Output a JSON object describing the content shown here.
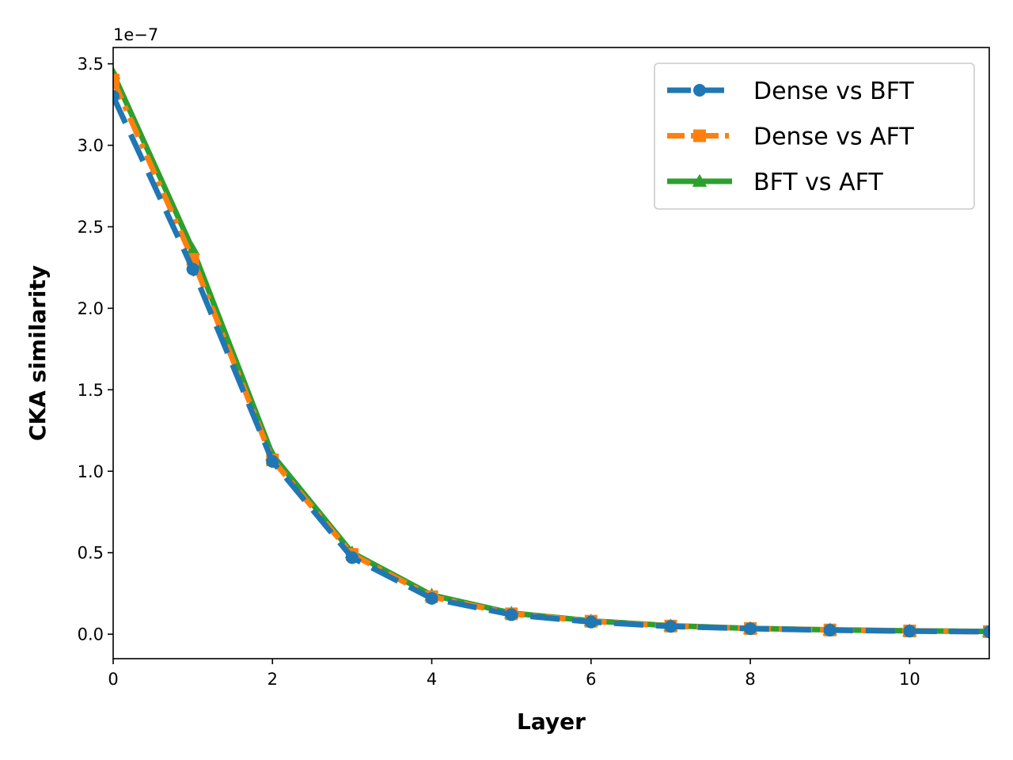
{
  "chart_data": {
    "type": "line",
    "title": "",
    "xlabel": "Layer",
    "ylabel": "CKA similarity",
    "y_offset_label": "1e−7",
    "xlim": [
      0,
      11
    ],
    "ylim": [
      -0.15,
      3.6
    ],
    "x_ticks": [
      0,
      2,
      4,
      6,
      8,
      10
    ],
    "x_tick_labels": [
      "0",
      "2",
      "4",
      "6",
      "8",
      "10"
    ],
    "y_ticks": [
      0.0,
      0.5,
      1.0,
      1.5,
      2.0,
      2.5,
      3.0,
      3.5
    ],
    "y_tick_labels": [
      "0.0",
      "0.5",
      "1.0",
      "1.5",
      "2.0",
      "2.5",
      "3.0",
      "3.5"
    ],
    "grid": false,
    "legend_position": "top-right",
    "x": [
      0,
      1,
      2,
      3,
      4,
      5,
      6,
      7,
      8,
      9,
      10,
      11
    ],
    "series": [
      {
        "name": "Dense vs BFT",
        "color": "#1f77b4",
        "linestyle": "dashed",
        "marker": "circle",
        "values": [
          3.3,
          2.24,
          1.06,
          0.47,
          0.22,
          0.12,
          0.075,
          0.048,
          0.034,
          0.025,
          0.019,
          0.015
        ]
      },
      {
        "name": "Dense vs AFT",
        "color": "#ff7f0e",
        "linestyle": "dashdot",
        "marker": "square",
        "values": [
          3.4,
          2.3,
          1.07,
          0.49,
          0.23,
          0.125,
          0.08,
          0.05,
          0.035,
          0.026,
          0.02,
          0.016
        ]
      },
      {
        "name": "BFT vs AFT",
        "color": "#2ca02c",
        "linestyle": "solid",
        "marker": "triangle",
        "values": [
          3.44,
          2.36,
          1.1,
          0.5,
          0.24,
          0.13,
          0.082,
          0.052,
          0.036,
          0.027,
          0.021,
          0.017
        ]
      }
    ]
  }
}
